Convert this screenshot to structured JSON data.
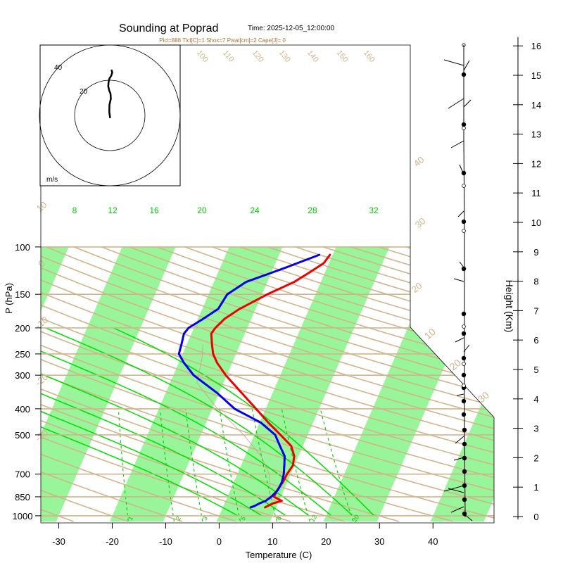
{
  "chart_data": {
    "type": "line",
    "title": "Sounding at Poprad",
    "time_label": "Time: 2025-12-05_12:00:00",
    "indices_text": "Plcl=888 Tlcl[C]=1 Shox=7 Pwat[cm]=2 Cape[J]= 0",
    "xlabel": "Temperature (C)",
    "ylabel": "P (hPa)",
    "y2label": "Height (Km)",
    "xlim": [
      -34,
      50
    ],
    "ylim": [
      1050,
      100
    ],
    "x_ticks": [
      "-30",
      "-20",
      "-10",
      "0",
      "10",
      "20",
      "30",
      "40"
    ],
    "y_ticks": [
      "100",
      "150",
      "200",
      "250",
      "300",
      "400",
      "500",
      "700",
      "850",
      "1000"
    ],
    "height_ticks": [
      "0",
      "1",
      "2",
      "3",
      "4",
      "5",
      "6",
      "7",
      "8",
      "9",
      "10",
      "11",
      "12",
      "13",
      "14",
      "15",
      "16"
    ],
    "hodograph": {
      "unit": "m/s",
      "ring_labels": [
        "20",
        "40"
      ],
      "trace_u": [
        0.2,
        -0.3,
        -0.2,
        0.6,
        0.4,
        -0.3,
        -0.9,
        -0.7,
        -0.2,
        0.8,
        1.4,
        0.9
      ],
      "trace_v": [
        -1.5,
        2.0,
        6.0,
        9.5,
        12.5,
        14.0,
        16.5,
        19.0,
        21.0,
        22.5,
        24.5,
        26.0
      ]
    },
    "mixing_ratio_labels": [
      "1",
      "2",
      "3",
      "5",
      "8",
      "12",
      "20"
    ],
    "dry_adiabat_labels": [
      "-30",
      "-20",
      "-10",
      "0",
      "10",
      "20",
      "30",
      "40"
    ],
    "upper_theta_labels": [
      "90",
      "100",
      "110",
      "120",
      "130",
      "140",
      "150",
      "160"
    ],
    "moist_adiabat_labels": [
      "8",
      "12",
      "16",
      "20",
      "24",
      "28",
      "32"
    ],
    "series": [
      {
        "name": "Temperature",
        "color": "#ee0000",
        "pressure": [
          930,
          900,
          880,
          850,
          800,
          750,
          700,
          650,
          600,
          550,
          500,
          450,
          400,
          350,
          300,
          270,
          250,
          230,
          210,
          200,
          185,
          170,
          150,
          135,
          125,
          115,
          107
        ],
        "temp": [
          7.9,
          9.0,
          10.5,
          8.7,
          8.8,
          9.2,
          9.3,
          9.7,
          9.2,
          7.8,
          4.9,
          1.6,
          -1.8,
          -5.7,
          -10.2,
          -12.8,
          -14.3,
          -15.3,
          -16.3,
          -16.0,
          -15.0,
          -13.0,
          -9.0,
          -5.0,
          -3.0,
          -1.0,
          -0.5
        ]
      },
      {
        "name": "Dewpoint",
        "color": "#0000ee",
        "pressure": [
          930,
          920,
          900,
          880,
          850,
          800,
          750,
          700,
          650,
          600,
          550,
          500,
          450,
          400,
          350,
          300,
          270,
          250,
          230,
          210,
          200,
          185,
          170,
          150,
          135,
          120,
          107
        ],
        "temp": [
          5.2,
          5.8,
          6.5,
          7.5,
          8.2,
          8.9,
          9.0,
          8.7,
          8.1,
          7.4,
          5.7,
          3.9,
          0.2,
          -5.8,
          -10.3,
          -16.2,
          -19.0,
          -20.7,
          -21.0,
          -21.4,
          -21.0,
          -19.0,
          -17.0,
          -16.5,
          -14.0,
          -8.0,
          -2.5
        ]
      }
    ],
    "grid": true,
    "legend": "none"
  }
}
